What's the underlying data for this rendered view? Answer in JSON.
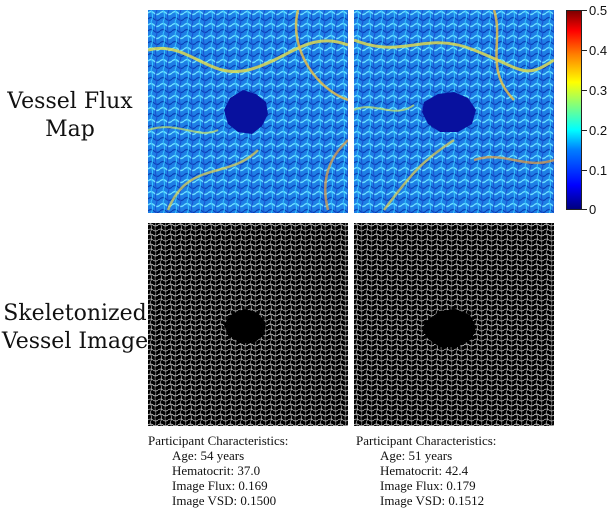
{
  "row_labels": {
    "flux": [
      "Vessel Flux",
      "Map"
    ],
    "skeleton": [
      "Skeletonized",
      "Vessel Image"
    ]
  },
  "colorbar": {
    "ticks": [
      "0.5",
      "0.4",
      "0.3",
      "0.2",
      "0.1",
      "0"
    ],
    "min": 0,
    "max": 0.5,
    "colors": [
      "#00007f",
      "#0000ff",
      "#00ffff",
      "#ffff00",
      "#ff0000",
      "#7f0000"
    ]
  },
  "participants": [
    {
      "heading": "Participant Characteristics:",
      "age": "Age: 54 years",
      "hematocrit": "Hematocrit: 37.0",
      "flux": "Image Flux: 0.169",
      "vsd": "Image VSD: 0.1500"
    },
    {
      "heading": "Participant Characteristics:",
      "age": "Age: 51 years",
      "hematocrit": "Hematocrit: 42.4",
      "flux": "Image Flux: 0.179",
      "vsd": "Image VSD: 0.1512"
    }
  ]
}
